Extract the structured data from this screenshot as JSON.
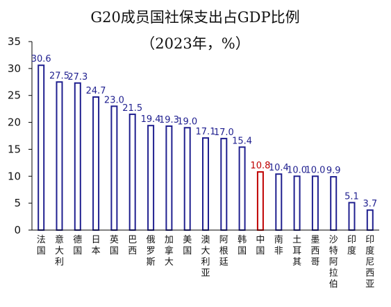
{
  "chart_data": {
    "type": "bar",
    "title": "G20成员国社保支出占GDP比例",
    "subtitle": "（2023年，%）",
    "categories": [
      "法国",
      "意大利",
      "德国",
      "日本",
      "英国",
      "巴西",
      "俄罗斯",
      "加拿大",
      "美国",
      "澳大利亚",
      "阿根廷",
      "韩国",
      "中国",
      "南非",
      "土耳其",
      "墨西哥",
      "沙特阿拉伯",
      "印度",
      "印度尼西亚"
    ],
    "values": [
      30.6,
      27.5,
      27.3,
      24.7,
      23.0,
      21.5,
      19.4,
      19.3,
      19.0,
      17.1,
      17.0,
      15.4,
      10.8,
      10.4,
      10.0,
      10.0,
      9.9,
      5.1,
      3.7
    ],
    "value_labels": [
      "30.6",
      "27.5",
      "27.3",
      "24.7",
      "23.0",
      "21.5",
      "19.4",
      "19.3",
      "19.0",
      "17.1",
      "17.0",
      "15.4",
      "10.8",
      "10.4",
      "10.0",
      "10.0",
      "9.9",
      "5.1",
      "3.7"
    ],
    "highlight_index": 12,
    "yticks": [
      "0",
      "5",
      "10",
      "15",
      "20",
      "25",
      "30",
      "35"
    ],
    "ylim": [
      0,
      35
    ],
    "grid": false,
    "legend": "none",
    "colors": {
      "bar": "#1f1f8f",
      "highlight": "#c00000",
      "bar_fill": "#ffffff",
      "axis": "#000000"
    }
  }
}
